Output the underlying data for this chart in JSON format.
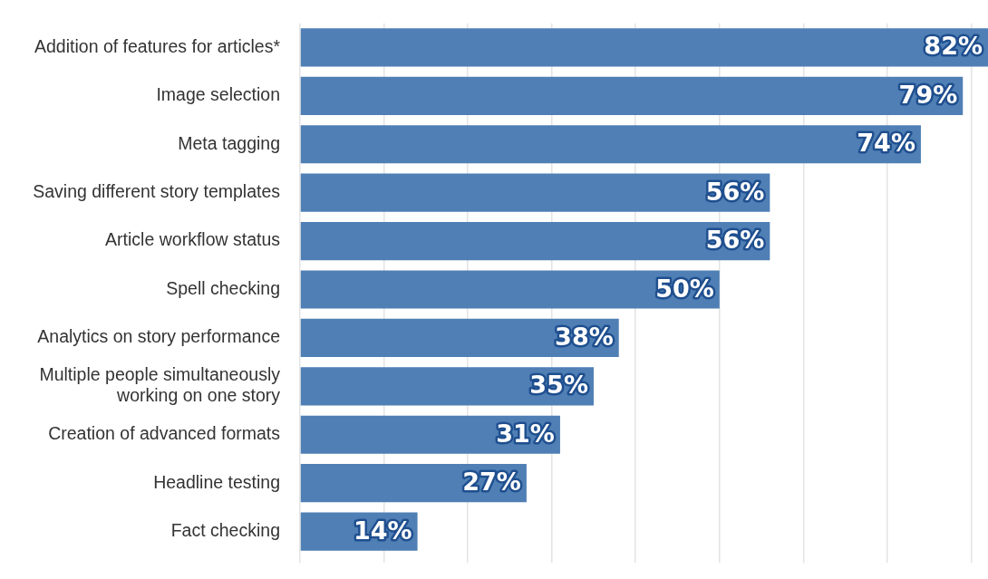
{
  "chart_data": {
    "type": "bar",
    "orientation": "horizontal",
    "categories": [
      "Addition of features for articles*",
      "Image selection",
      "Meta tagging",
      "Saving different story templates",
      "Article workflow status",
      "Spell checking",
      "Analytics on story performance",
      "Multiple people simultaneously\nworking on one story",
      "Creation of advanced formats",
      "Headline testing",
      "Fact checking"
    ],
    "values": [
      82,
      79,
      74,
      56,
      56,
      50,
      38,
      35,
      31,
      27,
      14
    ],
    "value_labels": [
      "82%",
      "79%",
      "74%",
      "56%",
      "56%",
      "50%",
      "38%",
      "35%",
      "31%",
      "27%",
      "14%"
    ],
    "color": "#4f7fb4",
    "xlim": [
      0,
      82
    ],
    "xticks": [
      {
        "value": 0,
        "label": null
      },
      {
        "value": 10,
        "label": null
      },
      {
        "value": 20,
        "label": null
      },
      {
        "value": 30,
        "label": null
      },
      {
        "value": 40,
        "label": null
      },
      {
        "value": 50,
        "label": null
      },
      {
        "value": 60,
        "label": null
      },
      {
        "value": 70,
        "label": null
      },
      {
        "value": 80,
        "label": null
      }
    ],
    "grid": "x",
    "tick_labels": "y",
    "legend": false
  }
}
